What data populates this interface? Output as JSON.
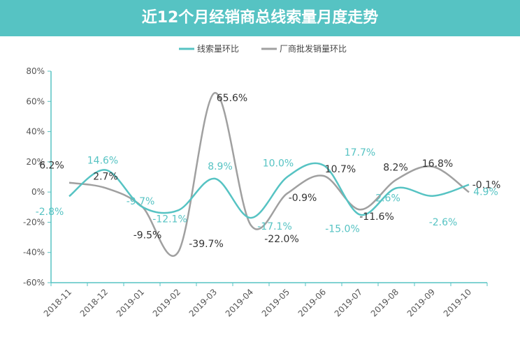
{
  "title": "近12个月经销商总线索量月度走势",
  "colors": {
    "header": "#56c3c3",
    "series1": "#56c3c3",
    "series2": "#a0a0a0",
    "axis": "#56c3c3"
  },
  "chart_data": {
    "type": "line",
    "title": "近12个月经销商总线索量月度走势",
    "categories": [
      "2018-11",
      "2018-12",
      "2019-01",
      "2019-02",
      "2019-03",
      "2019-04",
      "2019-05",
      "2019-06",
      "2019-07",
      "2019-08",
      "2019-09",
      "2019-10"
    ],
    "yticks": [
      "80%",
      "60%",
      "40%",
      "20%",
      "0%",
      "-20%",
      "-40%",
      "-60%"
    ],
    "ylim": [
      -60,
      80
    ],
    "legend_position": "top-center",
    "series": [
      {
        "name": "线索量环比",
        "values": [
          -2.8,
          14.6,
          -9.7,
          -12.1,
          8.9,
          -17.1,
          10.0,
          17.7,
          -15.0,
          2.6,
          -2.6,
          4.9
        ],
        "labels": [
          "-2.8%",
          "14.6%",
          "-9.7%",
          "-12.1%",
          "8.9%",
          "-17.1%",
          "10.0%",
          "17.7%",
          "-15.0%",
          "2.6%",
          "-2.6%",
          "4.9%"
        ]
      },
      {
        "name": "厂商批发销量环比",
        "values": [
          6.2,
          2.7,
          -9.5,
          -39.7,
          65.6,
          -22.0,
          -0.9,
          10.7,
          -11.6,
          8.2,
          16.8,
          -0.1
        ],
        "labels": [
          "6.2%",
          "2.7%",
          "-9.5%",
          "-39.7%",
          "65.6%",
          "-22.0%",
          "-0.9%",
          "10.7%",
          "-11.6%",
          "8.2%",
          "16.8%",
          "-0.1%"
        ]
      }
    ]
  }
}
